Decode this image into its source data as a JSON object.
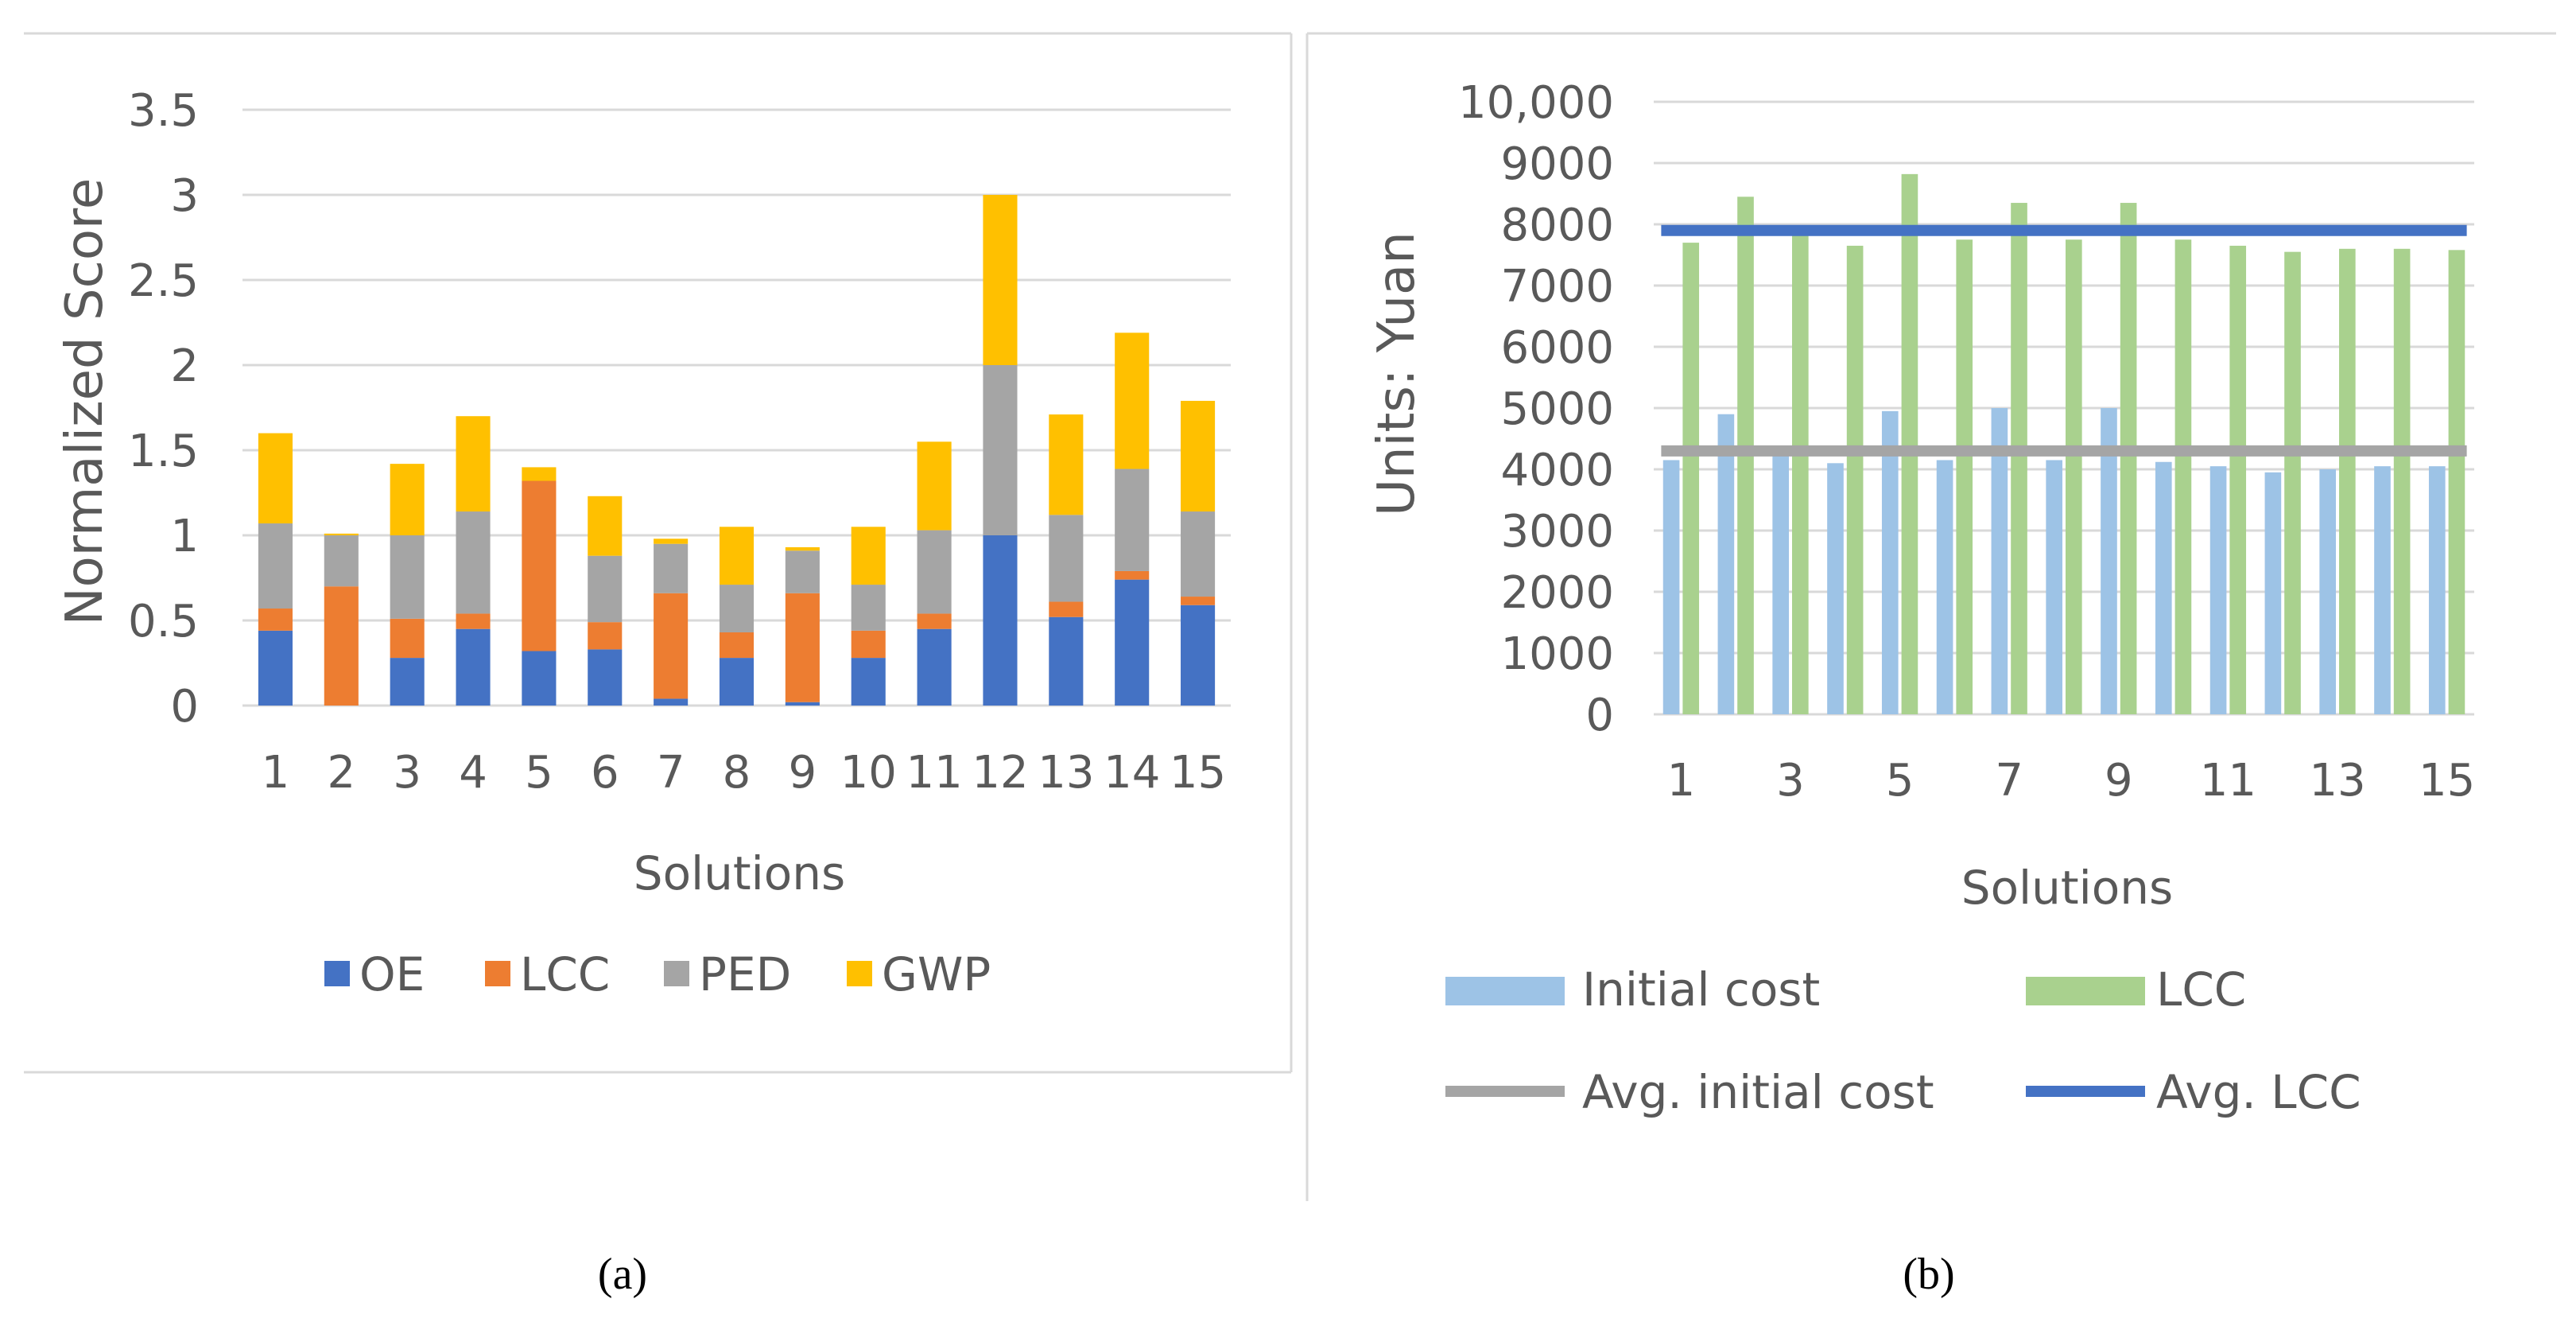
{
  "colors": {
    "oe": "#4472C4",
    "lcc_a": "#ED7D31",
    "ped": "#A5A5A5",
    "gwp": "#FFC000",
    "initial_cost": "#9DC3E6",
    "lcc_b": "#A9D18E",
    "avg_initial": "#A5A5A5",
    "avg_lcc": "#4472C4",
    "grid": "#D9D9D9",
    "text": "#595959",
    "frame": "#D9D9D9"
  },
  "chart_data": [
    {
      "type": "bar",
      "stacked": true,
      "panel": "(a)",
      "ylabel": "Normalized Score",
      "xlabel": "Solutions",
      "ylim": [
        0,
        3.5
      ],
      "yticks": [
        "0",
        "0.5",
        "1",
        "1.5",
        "2",
        "2.5",
        "3",
        "3.5"
      ],
      "categories": [
        "1",
        "2",
        "3",
        "4",
        "5",
        "6",
        "7",
        "8",
        "9",
        "10",
        "11",
        "12",
        "13",
        "14",
        "15"
      ],
      "series": [
        {
          "name": "OE",
          "key": "oe",
          "values": [
            0.44,
            0.0,
            0.28,
            0.45,
            0.32,
            0.33,
            0.04,
            0.28,
            0.02,
            0.28,
            0.45,
            1.0,
            0.52,
            0.74,
            0.59
          ]
        },
        {
          "name": "LCC",
          "key": "lcc_a",
          "values": [
            0.13,
            0.7,
            0.23,
            0.09,
            1.0,
            0.16,
            0.62,
            0.15,
            0.64,
            0.16,
            0.09,
            0.0,
            0.09,
            0.05,
            0.05
          ]
        },
        {
          "name": "PED",
          "key": "ped",
          "values": [
            0.5,
            0.3,
            0.49,
            0.6,
            0.0,
            0.39,
            0.29,
            0.28,
            0.25,
            0.27,
            0.49,
            1.0,
            0.51,
            0.6,
            0.5
          ]
        },
        {
          "name": "GWP",
          "key": "gwp",
          "values": [
            0.53,
            0.01,
            0.42,
            0.56,
            0.08,
            0.35,
            0.03,
            0.34,
            0.02,
            0.34,
            0.52,
            1.0,
            0.59,
            0.8,
            0.65
          ]
        }
      ],
      "legend": [
        "OE",
        "LCC",
        "PED",
        "GWP"
      ],
      "legend_position": "bottom"
    },
    {
      "type": "bar",
      "panel": "(b)",
      "ylabel": "Units: Yuan",
      "xlabel": "Solutions",
      "ylim": [
        0,
        10000
      ],
      "yticks": [
        "0",
        "1000",
        "2000",
        "3000",
        "4000",
        "5000",
        "6000",
        "7000",
        "8000",
        "9000",
        "10,000"
      ],
      "categories": [
        "1",
        "2",
        "3",
        "4",
        "5",
        "6",
        "7",
        "8",
        "9",
        "10",
        "11",
        "12",
        "13",
        "14",
        "15"
      ],
      "xtick_labels": [
        "1",
        "",
        "3",
        "",
        "5",
        "",
        "7",
        "",
        "9",
        "",
        "11",
        "",
        "13",
        "",
        "15"
      ],
      "series": [
        {
          "name": "Initial cost",
          "key": "initial_cost",
          "values": [
            4150,
            4900,
            4300,
            4100,
            4950,
            4150,
            5000,
            4150,
            5000,
            4120,
            4050,
            3950,
            4000,
            4050,
            4050
          ]
        },
        {
          "name": "LCC",
          "key": "lcc_b",
          "values": [
            7700,
            8450,
            7850,
            7650,
            8820,
            7750,
            8350,
            7750,
            8350,
            7750,
            7650,
            7550,
            7600,
            7600,
            7580
          ]
        }
      ],
      "lines": [
        {
          "name": "Avg. initial cost",
          "key": "avg_initial",
          "value": 4300
        },
        {
          "name": "Avg. LCC",
          "key": "avg_lcc",
          "value": 7900
        }
      ],
      "legend": [
        "Initial cost",
        "LCC",
        "Avg. initial cost",
        "Avg. LCC"
      ],
      "legend_position": "bottom"
    }
  ]
}
